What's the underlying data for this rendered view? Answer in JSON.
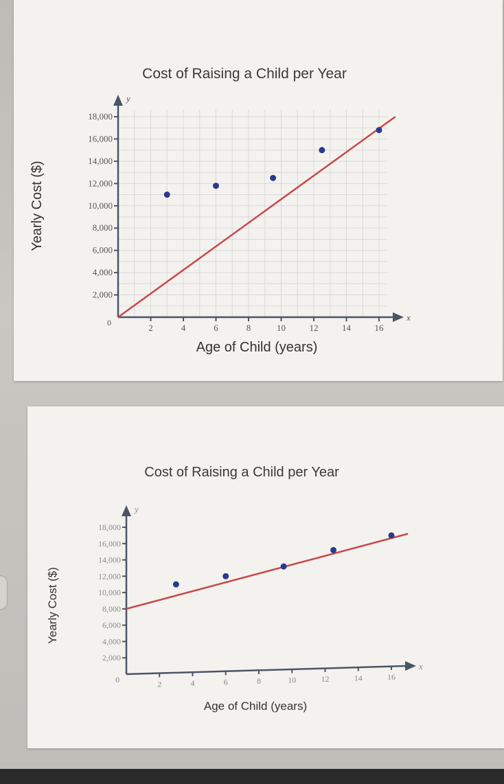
{
  "chart_data": [
    {
      "type": "scatter",
      "title": "Cost of Raising a Child per Year",
      "xlabel": "Age of Child (years)",
      "ylabel": "Yearly Cost ($)",
      "x_axis_letter": "x",
      "y_axis_letter": "y",
      "origin_label": "0",
      "xlim": [
        0,
        16
      ],
      "ylim": [
        0,
        18000
      ],
      "x_ticks": [
        "2",
        "4",
        "6",
        "8",
        "10",
        "12",
        "14",
        "16"
      ],
      "y_ticks": [
        "2,000",
        "4,000",
        "6,000",
        "8,000",
        "10,000",
        "12,000",
        "14,000",
        "16,000",
        "18,000"
      ],
      "grid": true,
      "colors": {
        "points": "#2b3a8c",
        "line": "#c9474a"
      },
      "points": [
        {
          "x": 3,
          "y": 11000
        },
        {
          "x": 6,
          "y": 11800
        },
        {
          "x": 9.5,
          "y": 12500
        },
        {
          "x": 12.5,
          "y": 15000
        },
        {
          "x": 16,
          "y": 16800
        }
      ],
      "trend_line": [
        {
          "x": 0,
          "y": 0
        },
        {
          "x": 17,
          "y": 18000
        }
      ]
    },
    {
      "type": "scatter",
      "title": "Cost of Raising a Child per Year",
      "xlabel": "Age of Child (years)",
      "ylabel": "Yearly Cost ($)",
      "x_axis_letter": "x",
      "y_axis_letter": "y",
      "origin_label": "0",
      "xlim": [
        0,
        16
      ],
      "ylim": [
        0,
        18000
      ],
      "x_ticks": [
        "2",
        "4",
        "6",
        "8",
        "10",
        "12",
        "14",
        "16"
      ],
      "y_ticks": [
        "2,000",
        "4,000",
        "6,000",
        "8,000",
        "10,000",
        "12,000",
        "14,000",
        "16,000",
        "18,000"
      ],
      "grid": false,
      "colors": {
        "points": "#2b3a8c",
        "line": "#c9474a"
      },
      "points": [
        {
          "x": 3,
          "y": 11000
        },
        {
          "x": 6,
          "y": 12000
        },
        {
          "x": 9.5,
          "y": 13200
        },
        {
          "x": 12.5,
          "y": 15200
        },
        {
          "x": 16,
          "y": 17000
        }
      ],
      "trend_line": [
        {
          "x": 0,
          "y": 8000
        },
        {
          "x": 17,
          "y": 17200
        }
      ]
    }
  ]
}
